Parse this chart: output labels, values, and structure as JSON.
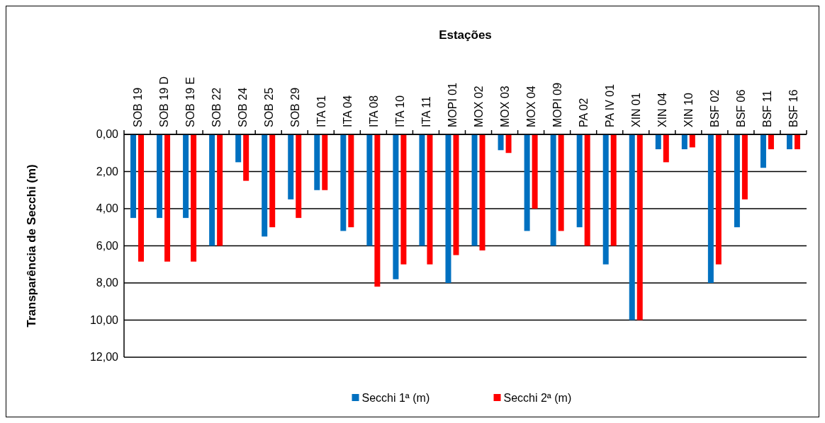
{
  "chart_data": {
    "type": "bar",
    "title": "Estações",
    "ylabel": "Transparência de Secchi (m)",
    "categories": [
      "SOB 19",
      "SOB 19 D",
      "SOB 19 E",
      "SOB 22",
      "SOB 24",
      "SOB 25",
      "SOB 29",
      "ITA 01",
      "ITA 04",
      "ITA 08",
      "ITA 10",
      "ITA 11",
      "MOPI 01",
      "MOX 02",
      "MOX 03",
      "MOX 04",
      "MOPI 09",
      "PA 02",
      "PA IV 01",
      "XIN 01",
      "XIN 04",
      "XIN 10",
      "BSF 02",
      "BSF 06",
      "BSF 11",
      "BSF 16"
    ],
    "series": [
      {
        "name": "Secchi 1ª (m)",
        "color": "#0070c0",
        "values": [
          4.5,
          4.5,
          4.5,
          6,
          1.5,
          5.5,
          3.5,
          3,
          5.2,
          6,
          7.8,
          6,
          8,
          6,
          0.85,
          5.2,
          6,
          5,
          7,
          10,
          0.8,
          0.8,
          8,
          5,
          1.8,
          0.8
        ]
      },
      {
        "name": "Secchi 2ª (m)",
        "color": "#ff0000",
        "values": [
          6.85,
          6.85,
          6.85,
          6,
          2.5,
          5,
          4.5,
          3,
          5,
          8.2,
          7,
          7,
          6.5,
          6.25,
          1,
          4,
          5.2,
          6,
          6,
          10,
          1.5,
          0.7,
          7,
          3.5,
          0.8,
          0.8
        ]
      }
    ],
    "ylim": [
      12,
      0
    ],
    "yticks": [
      {
        "value": 0,
        "label": "0,00"
      },
      {
        "value": 2,
        "label": "2,00"
      },
      {
        "value": 4,
        "label": "4,00"
      },
      {
        "value": 6,
        "label": "6,00"
      },
      {
        "value": 8,
        "label": "8,00"
      },
      {
        "value": 10,
        "label": "10,00"
      },
      {
        "value": 12,
        "label": "12,00"
      }
    ],
    "grid": "y",
    "legend": "bottom"
  }
}
